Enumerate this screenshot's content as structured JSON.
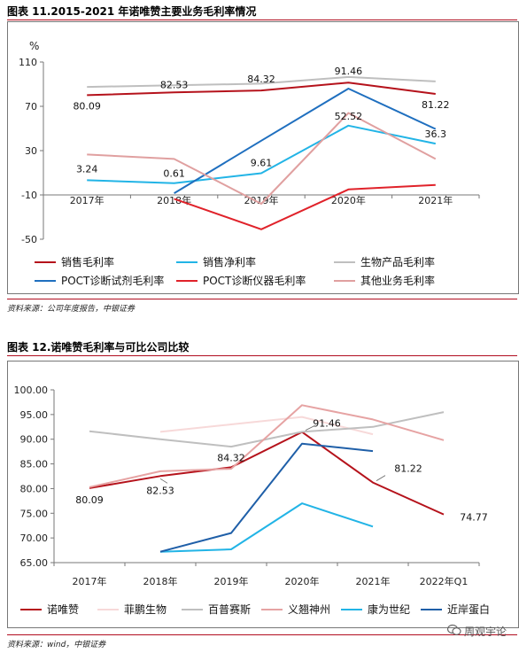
{
  "figure1": {
    "title": "图表 11.2015-2021 年诺唯赞主要业务毛利率情况",
    "source": "资料来源：公司年度报告，中银证券",
    "chart_data": {
      "type": "line",
      "unit_label": "%",
      "categories": [
        "2017年",
        "2018年",
        "2019年",
        "2020年",
        "2021年"
      ],
      "ylim": [
        -50,
        110
      ],
      "yticks": [
        "110",
        "70",
        "30",
        "-10",
        "-50"
      ],
      "grid": false,
      "legend_position": "bottom",
      "series": [
        {
          "name": "销售毛利率",
          "color": "#b5121b",
          "values": [
            80.09,
            82.53,
            84.32,
            91.46,
            81.22
          ]
        },
        {
          "name": "销售净利率",
          "color": "#22b4e6",
          "values": [
            3.24,
            0.61,
            9.61,
            52.52,
            36.3
          ]
        },
        {
          "name": "生物产品毛利率",
          "color": "#bfbfbf",
          "values": [
            87.5,
            89.0,
            90.5,
            96.5,
            92.5
          ]
        },
        {
          "name": "POCT诊断试剂毛利率",
          "color": "#1f6fbf",
          "values": [
            null,
            -8.5,
            39.0,
            86.0,
            49.5
          ]
        },
        {
          "name": "POCT诊断仪器毛利率",
          "color": "#e0222a",
          "values": [
            null,
            -13.5,
            -41.0,
            -5.0,
            -1.0
          ]
        },
        {
          "name": "其他业务毛利率",
          "color": "#e0a0a0",
          "values": [
            26.5,
            22.5,
            -18.0,
            64.0,
            22.5
          ]
        }
      ],
      "labels": [
        {
          "text": "80.09",
          "series": 0,
          "index": 0
        },
        {
          "text": "82.53",
          "series": 0,
          "index": 1
        },
        {
          "text": "84.32",
          "series": 0,
          "index": 2
        },
        {
          "text": "91.46",
          "series": 0,
          "index": 3
        },
        {
          "text": "81.22",
          "series": 0,
          "index": 4
        },
        {
          "text": "3.24",
          "series": 1,
          "index": 0
        },
        {
          "text": "0.61",
          "series": 1,
          "index": 1
        },
        {
          "text": "9.61",
          "series": 1,
          "index": 2
        },
        {
          "text": "52.52",
          "series": 1,
          "index": 3
        },
        {
          "text": "36.3",
          "series": 1,
          "index": 4
        }
      ]
    }
  },
  "figure2": {
    "title": "图表 12.诺唯赞毛利率与可比公司比较",
    "source": "资料来源：wind，中银证券",
    "chart_data": {
      "type": "line",
      "categories": [
        "2017年",
        "2018年",
        "2019年",
        "2020年",
        "2021年",
        "2022年Q1"
      ],
      "ylim": [
        65,
        100
      ],
      "yticks": [
        "100.00",
        "95.00",
        "90.00",
        "85.00",
        "80.00",
        "75.00",
        "70.00",
        "65.00"
      ],
      "grid": false,
      "legend_position": "bottom",
      "series": [
        {
          "name": "诺唯赞",
          "color": "#b5121b",
          "values": [
            80.09,
            82.53,
            84.32,
            91.46,
            81.22,
            74.77
          ]
        },
        {
          "name": "菲鹏生物",
          "color": "#f7d9d9",
          "values": [
            null,
            91.5,
            93.0,
            94.5,
            91.0,
            null
          ]
        },
        {
          "name": "百普赛斯",
          "color": "#bfbfbf",
          "values": [
            91.6,
            90.0,
            88.5,
            91.5,
            92.5,
            95.5
          ]
        },
        {
          "name": "义翘神州",
          "color": "#e6a3a3",
          "values": [
            80.3,
            83.5,
            84.0,
            96.9,
            94.0,
            89.8
          ]
        },
        {
          "name": "康为世纪",
          "color": "#22b4e6",
          "values": [
            null,
            67.2,
            67.7,
            77.0,
            72.3,
            null
          ]
        },
        {
          "name": "近岸蛋白",
          "color": "#1f5fa8",
          "values": [
            null,
            67.2,
            71.0,
            89.1,
            87.6,
            null
          ]
        }
      ],
      "labels": [
        {
          "text": "80.09",
          "series": 0,
          "index": 0
        },
        {
          "text": "82.53",
          "series": 0,
          "index": 1
        },
        {
          "text": "84.32",
          "series": 0,
          "index": 2
        },
        {
          "text": "91.46",
          "series": 0,
          "index": 3
        },
        {
          "text": "81.22",
          "series": 0,
          "index": 4
        },
        {
          "text": "74.77",
          "series": 0,
          "index": 5
        }
      ]
    }
  },
  "watermark": {
    "icon": "wechat-icon",
    "text": "周观宇论"
  }
}
